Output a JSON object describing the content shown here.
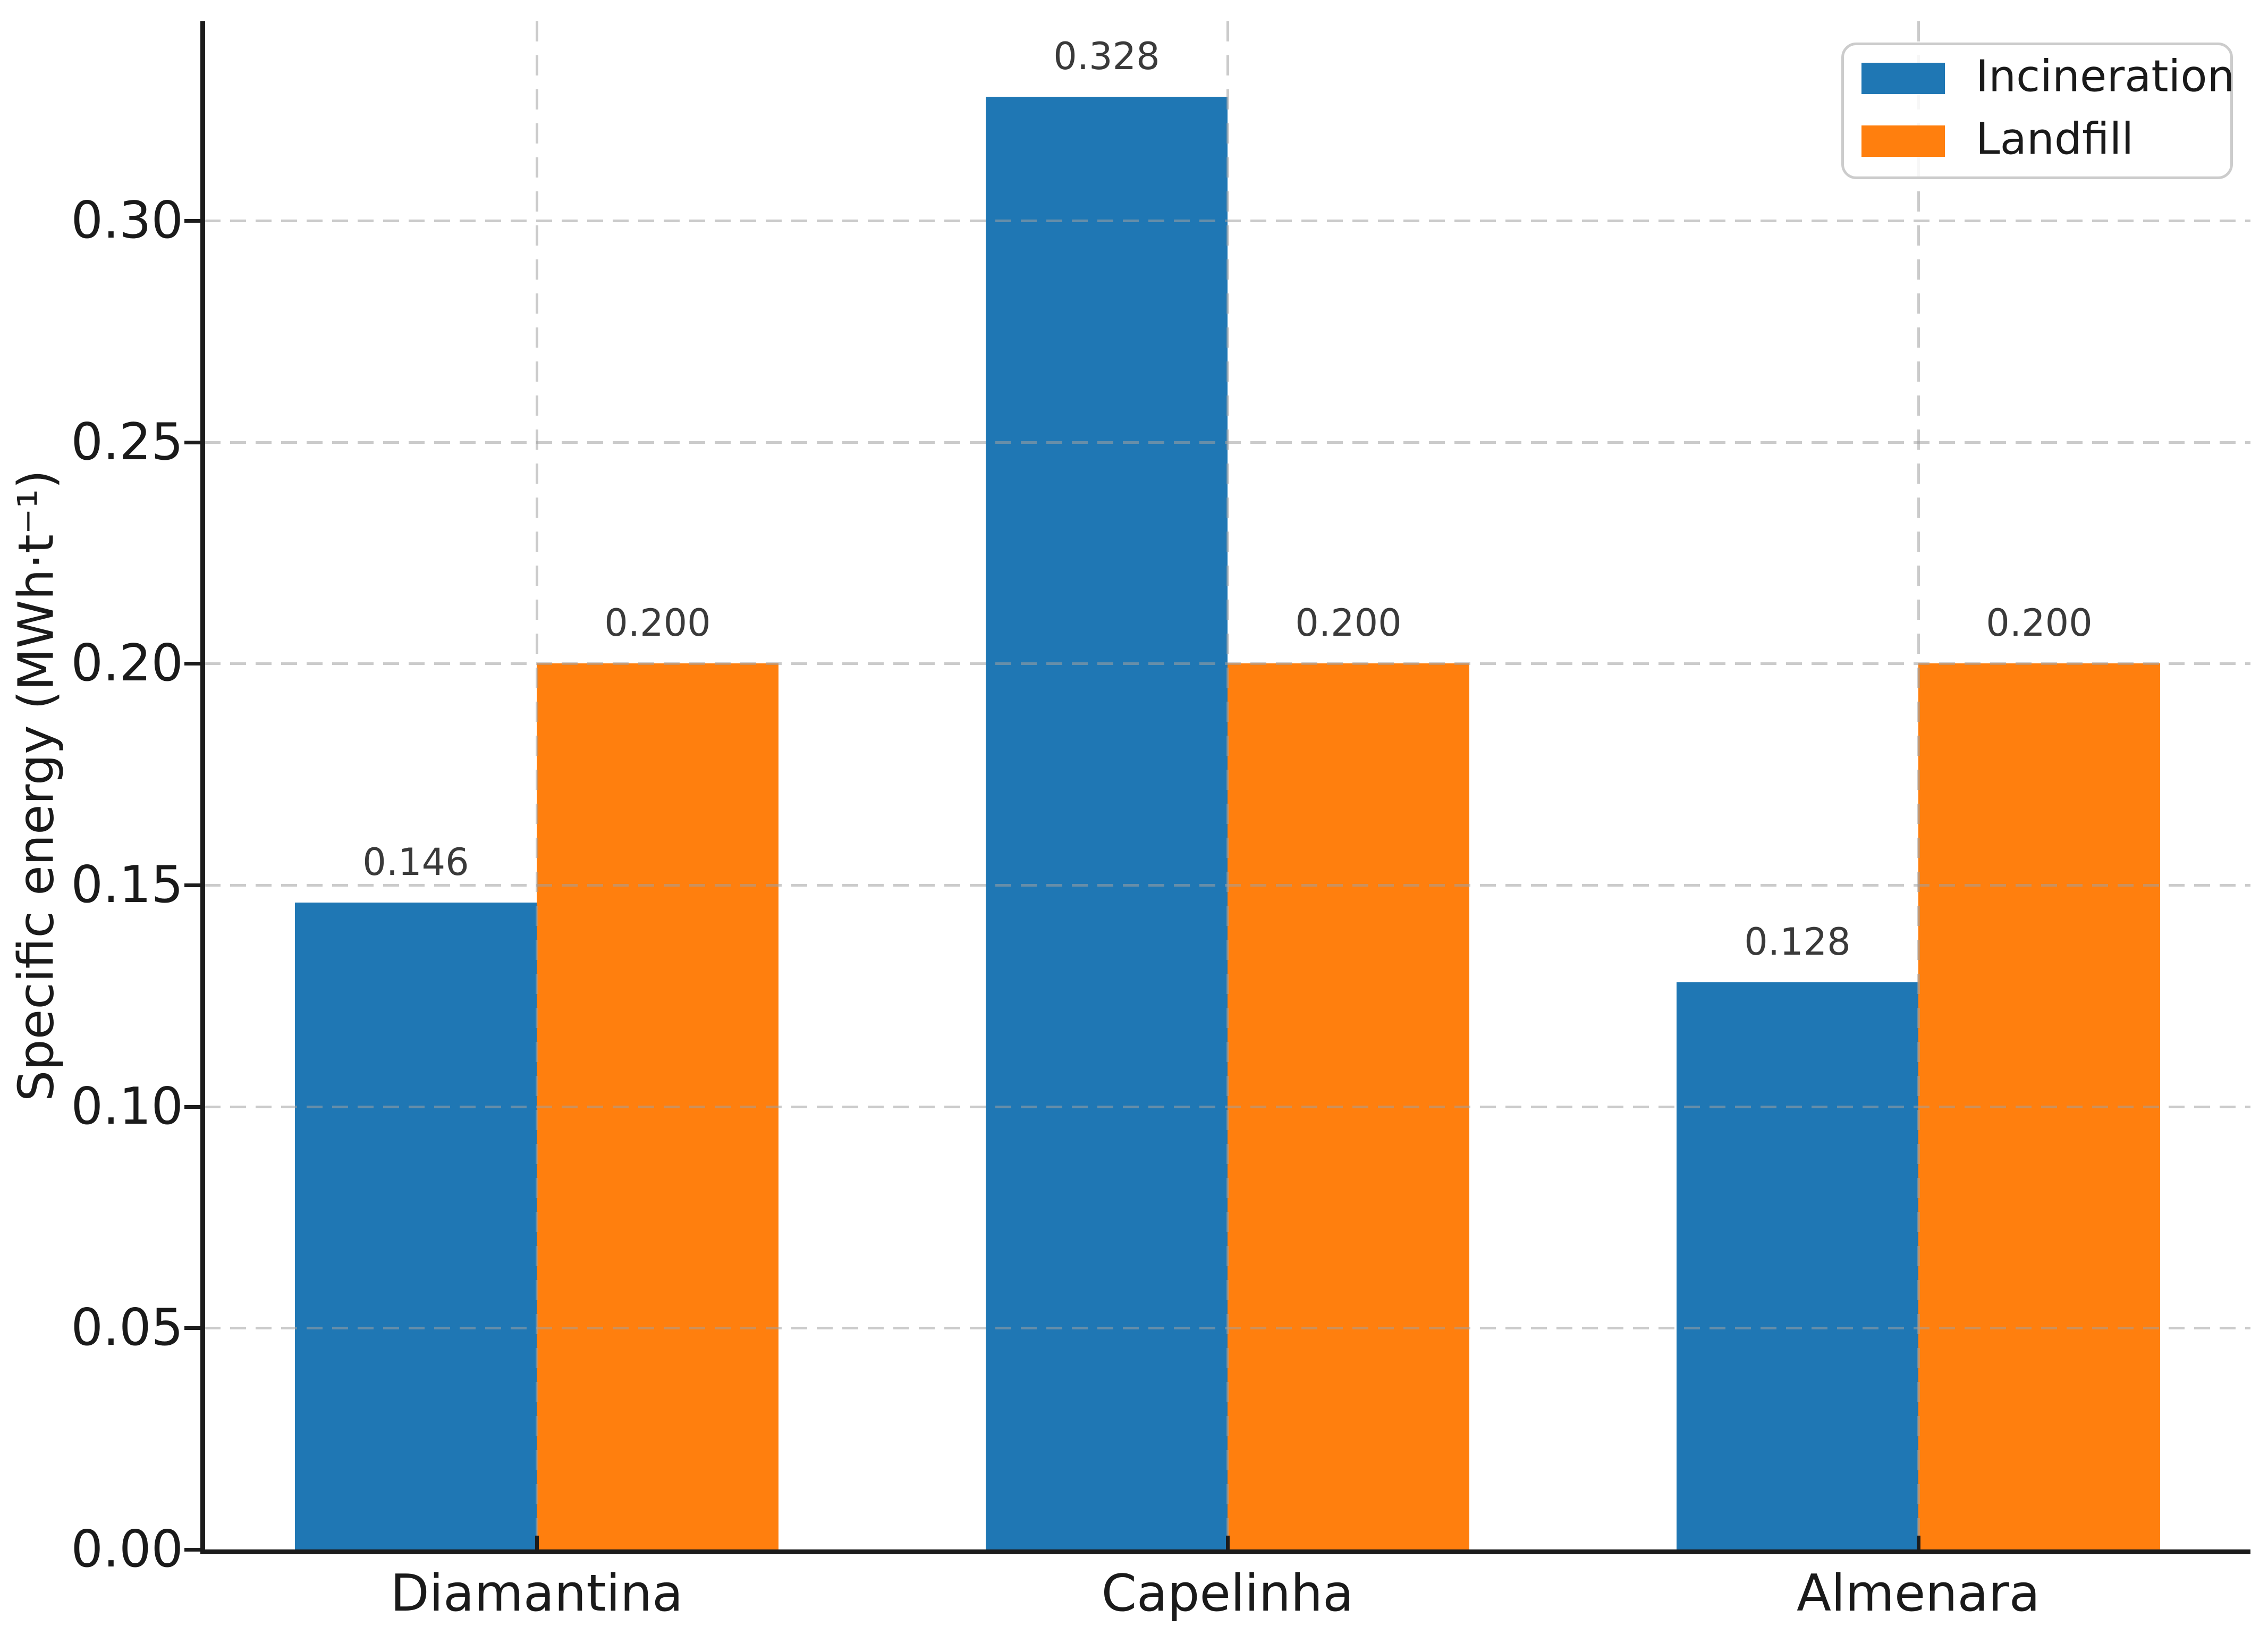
{
  "chart_data": {
    "type": "bar",
    "title": "",
    "xlabel": "",
    "ylabel": "Specific energy (MWh·t⁻¹)",
    "categories": [
      "Diamantina",
      "Capelinha",
      "Almenara"
    ],
    "series": [
      {
        "name": "Incineration",
        "color": "#1f77b4",
        "values": [
          0.146,
          0.328,
          0.128
        ]
      },
      {
        "name": "Landfill",
        "color": "#ff7f0e",
        "values": [
          0.2,
          0.2,
          0.2
        ]
      }
    ],
    "bar_value_labels": [
      [
        "0.146",
        "0.328",
        "0.128"
      ],
      [
        "0.200",
        "0.200",
        "0.200"
      ]
    ],
    "ylim": [
      0,
      0.345
    ],
    "ytick_values": [
      0.0,
      0.05,
      0.1,
      0.15,
      0.2,
      0.25,
      0.3
    ],
    "ytick_labels": [
      "0.00",
      "0.05",
      "0.10",
      "0.15",
      "0.20",
      "0.25",
      "0.30"
    ],
    "grid": "both-dashed-over-bars",
    "legend_position": "upper right"
  },
  "colors": {
    "incineration": "#1f77b4",
    "landfill": "#ff7f0e",
    "gridline": "#cccccc",
    "axis_spine": "#1c1c1c",
    "tick_text": "#1a1a1a",
    "value_label_text": "#3a3a3a",
    "legend_border": "#cccccc",
    "background": "#ffffff"
  }
}
